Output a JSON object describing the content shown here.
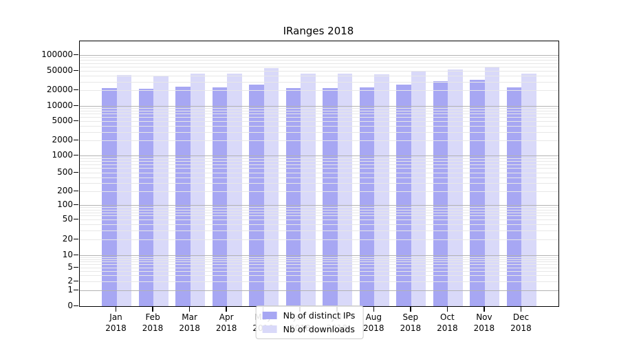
{
  "chart_data": {
    "type": "bar",
    "title": "IRanges 2018",
    "categories": [
      "Jan 2018",
      "Feb 2018",
      "Mar 2018",
      "Apr 2018",
      "May 2018",
      "Jun 2018",
      "Jul 2018",
      "Aug 2018",
      "Sep 2018",
      "Oct 2018",
      "Nov 2018",
      "Dec 2018"
    ],
    "series": [
      {
        "name": "Nb of distinct IPs",
        "color": "#a7a7f3",
        "values": [
          22300,
          21500,
          23300,
          22600,
          25900,
          22300,
          22300,
          22600,
          26300,
          30200,
          32400,
          23000
        ]
      },
      {
        "name": "Nb of downloads",
        "color": "#d9d9f9",
        "values": [
          40800,
          39900,
          43500,
          43200,
          56500,
          43500,
          43900,
          42100,
          48400,
          53800,
          60100,
          44500
        ]
      }
    ],
    "y_axis": {
      "ticks": [
        0,
        1,
        2,
        5,
        10,
        20,
        50,
        100,
        200,
        500,
        1000,
        2000,
        5000,
        10000,
        20000,
        50000,
        100000
      ],
      "scale": "log-like (1-2-5 sequence) with 0 at baseline"
    },
    "xlabel": "",
    "ylabel": "",
    "grid": {
      "horizontal": true,
      "major_color": "#b2b2b2",
      "minor_color": "#e7e7e7"
    },
    "legend_position": "lower center"
  },
  "legend": {
    "items": [
      {
        "label": "Nb of distinct IPs",
        "color": "#a7a7f3"
      },
      {
        "label": "Nb of downloads",
        "color": "#d9d9f9"
      }
    ]
  }
}
